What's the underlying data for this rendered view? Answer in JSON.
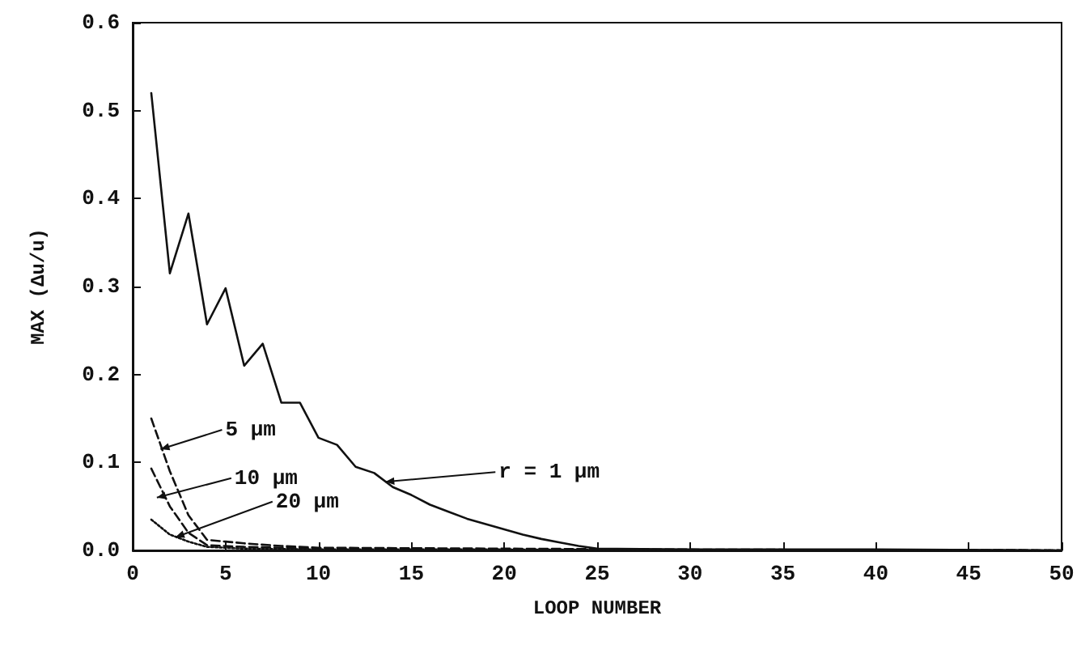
{
  "chart_data": {
    "type": "line",
    "xlabel": "LOOP NUMBER",
    "ylabel": "MAX (Δu/u)",
    "xlim": [
      0,
      50
    ],
    "xticks": [
      0,
      5,
      10,
      15,
      20,
      25,
      30,
      35,
      40,
      45,
      50
    ],
    "ylim": [
      0,
      0.6
    ],
    "yticks": [
      {
        "value": 0,
        "label": "0.0"
      },
      0.1,
      0.2,
      0.3,
      0.4,
      0.5,
      0.6
    ],
    "marker": "none",
    "series": [
      {
        "color": "#111111",
        "line_style": "solid",
        "x": [
          1,
          2,
          3,
          4,
          5,
          6,
          7,
          8,
          9,
          10,
          11,
          12,
          13,
          14,
          15,
          16,
          17,
          18,
          19,
          20,
          21,
          22,
          23,
          24,
          25,
          30,
          40,
          50
        ],
        "values": [
          0.52,
          0.315,
          0.383,
          0.257,
          0.298,
          0.21,
          0.235,
          0.168,
          0.168,
          0.128,
          0.12,
          0.095,
          0.088,
          0.072,
          0.063,
          0.052,
          0.044,
          0.036,
          0.03,
          0.024,
          0.018,
          0.013,
          0.009,
          0.005,
          0.002,
          0.001,
          0.001,
          0
        ]
      },
      {
        "color": "#111111",
        "line_style": "dashed",
        "x": [
          1,
          2,
          3,
          4,
          5,
          6,
          8,
          10,
          20,
          30,
          50
        ],
        "values": [
          0.15,
          0.09,
          0.04,
          0.012,
          0.01,
          0.008,
          0.005,
          0.003,
          0.002,
          0.001,
          0
        ]
      },
      {
        "color": "#111111",
        "line_style": "dashed",
        "x": [
          1,
          2,
          3,
          4,
          6,
          10,
          20,
          50
        ],
        "values": [
          0.093,
          0.05,
          0.02,
          0.006,
          0.004,
          0.002,
          0.001,
          0
        ]
      },
      {
        "color": "#111111",
        "line_style": "dotted",
        "x": [
          1,
          2,
          3,
          4,
          6,
          10,
          20,
          50
        ],
        "values": [
          0.035,
          0.018,
          0.01,
          0.004,
          0.002,
          0.001,
          0.001,
          0
        ]
      }
    ],
    "annotations": [
      {
        "text": "5 μm",
        "x": 1.5,
        "y": 0.115
      },
      {
        "text": "10 μm",
        "x": 1.3,
        "y": 0.06
      },
      {
        "text": "20 μm",
        "x": 2.3,
        "y": 0.015
      },
      {
        "text": "r = 1 μm",
        "x": 13.6,
        "y": 0.078
      }
    ]
  }
}
